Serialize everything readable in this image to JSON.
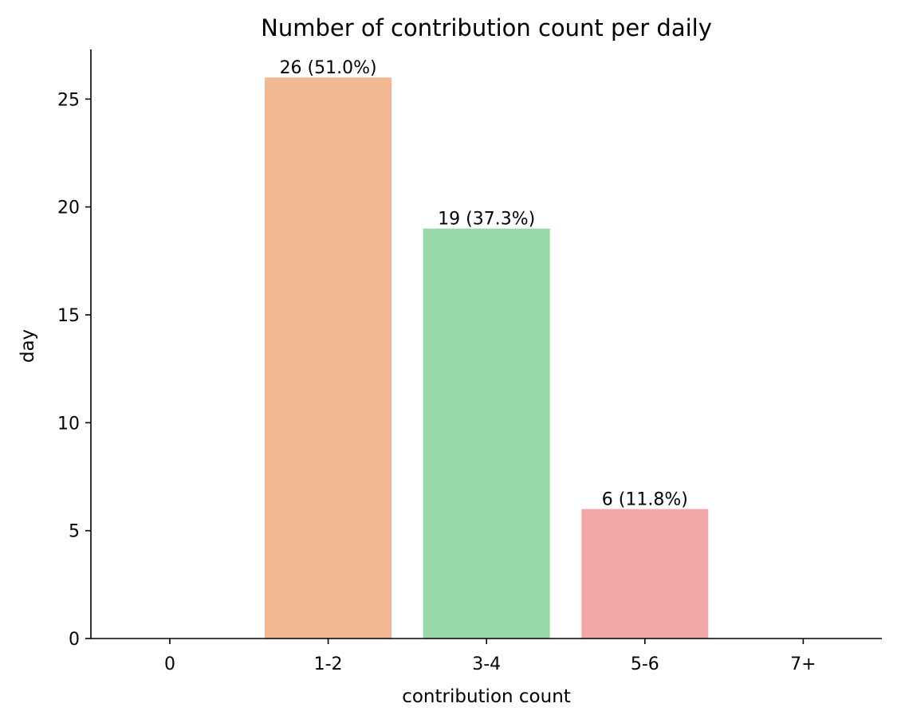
{
  "chart_data": {
    "type": "bar",
    "title": "Number of contribution count per daily",
    "xlabel": "contribution count",
    "ylabel": "day",
    "categories": [
      "0",
      "1-2",
      "3-4",
      "5-6",
      "7+"
    ],
    "values": [
      0,
      26,
      19,
      6,
      0
    ],
    "bar_labels": [
      "",
      "26 (51.0%)",
      "19 (37.3%)",
      "6 (11.8%)",
      ""
    ],
    "colors": [
      "#a1c9f4",
      "#f1b893",
      "#99d9a8",
      "#f1a8a8",
      "#d0bbff"
    ],
    "yticks": [
      0,
      5,
      10,
      15,
      20,
      25
    ],
    "ylim": [
      0,
      27.3
    ],
    "grid": false,
    "legend": "none"
  }
}
